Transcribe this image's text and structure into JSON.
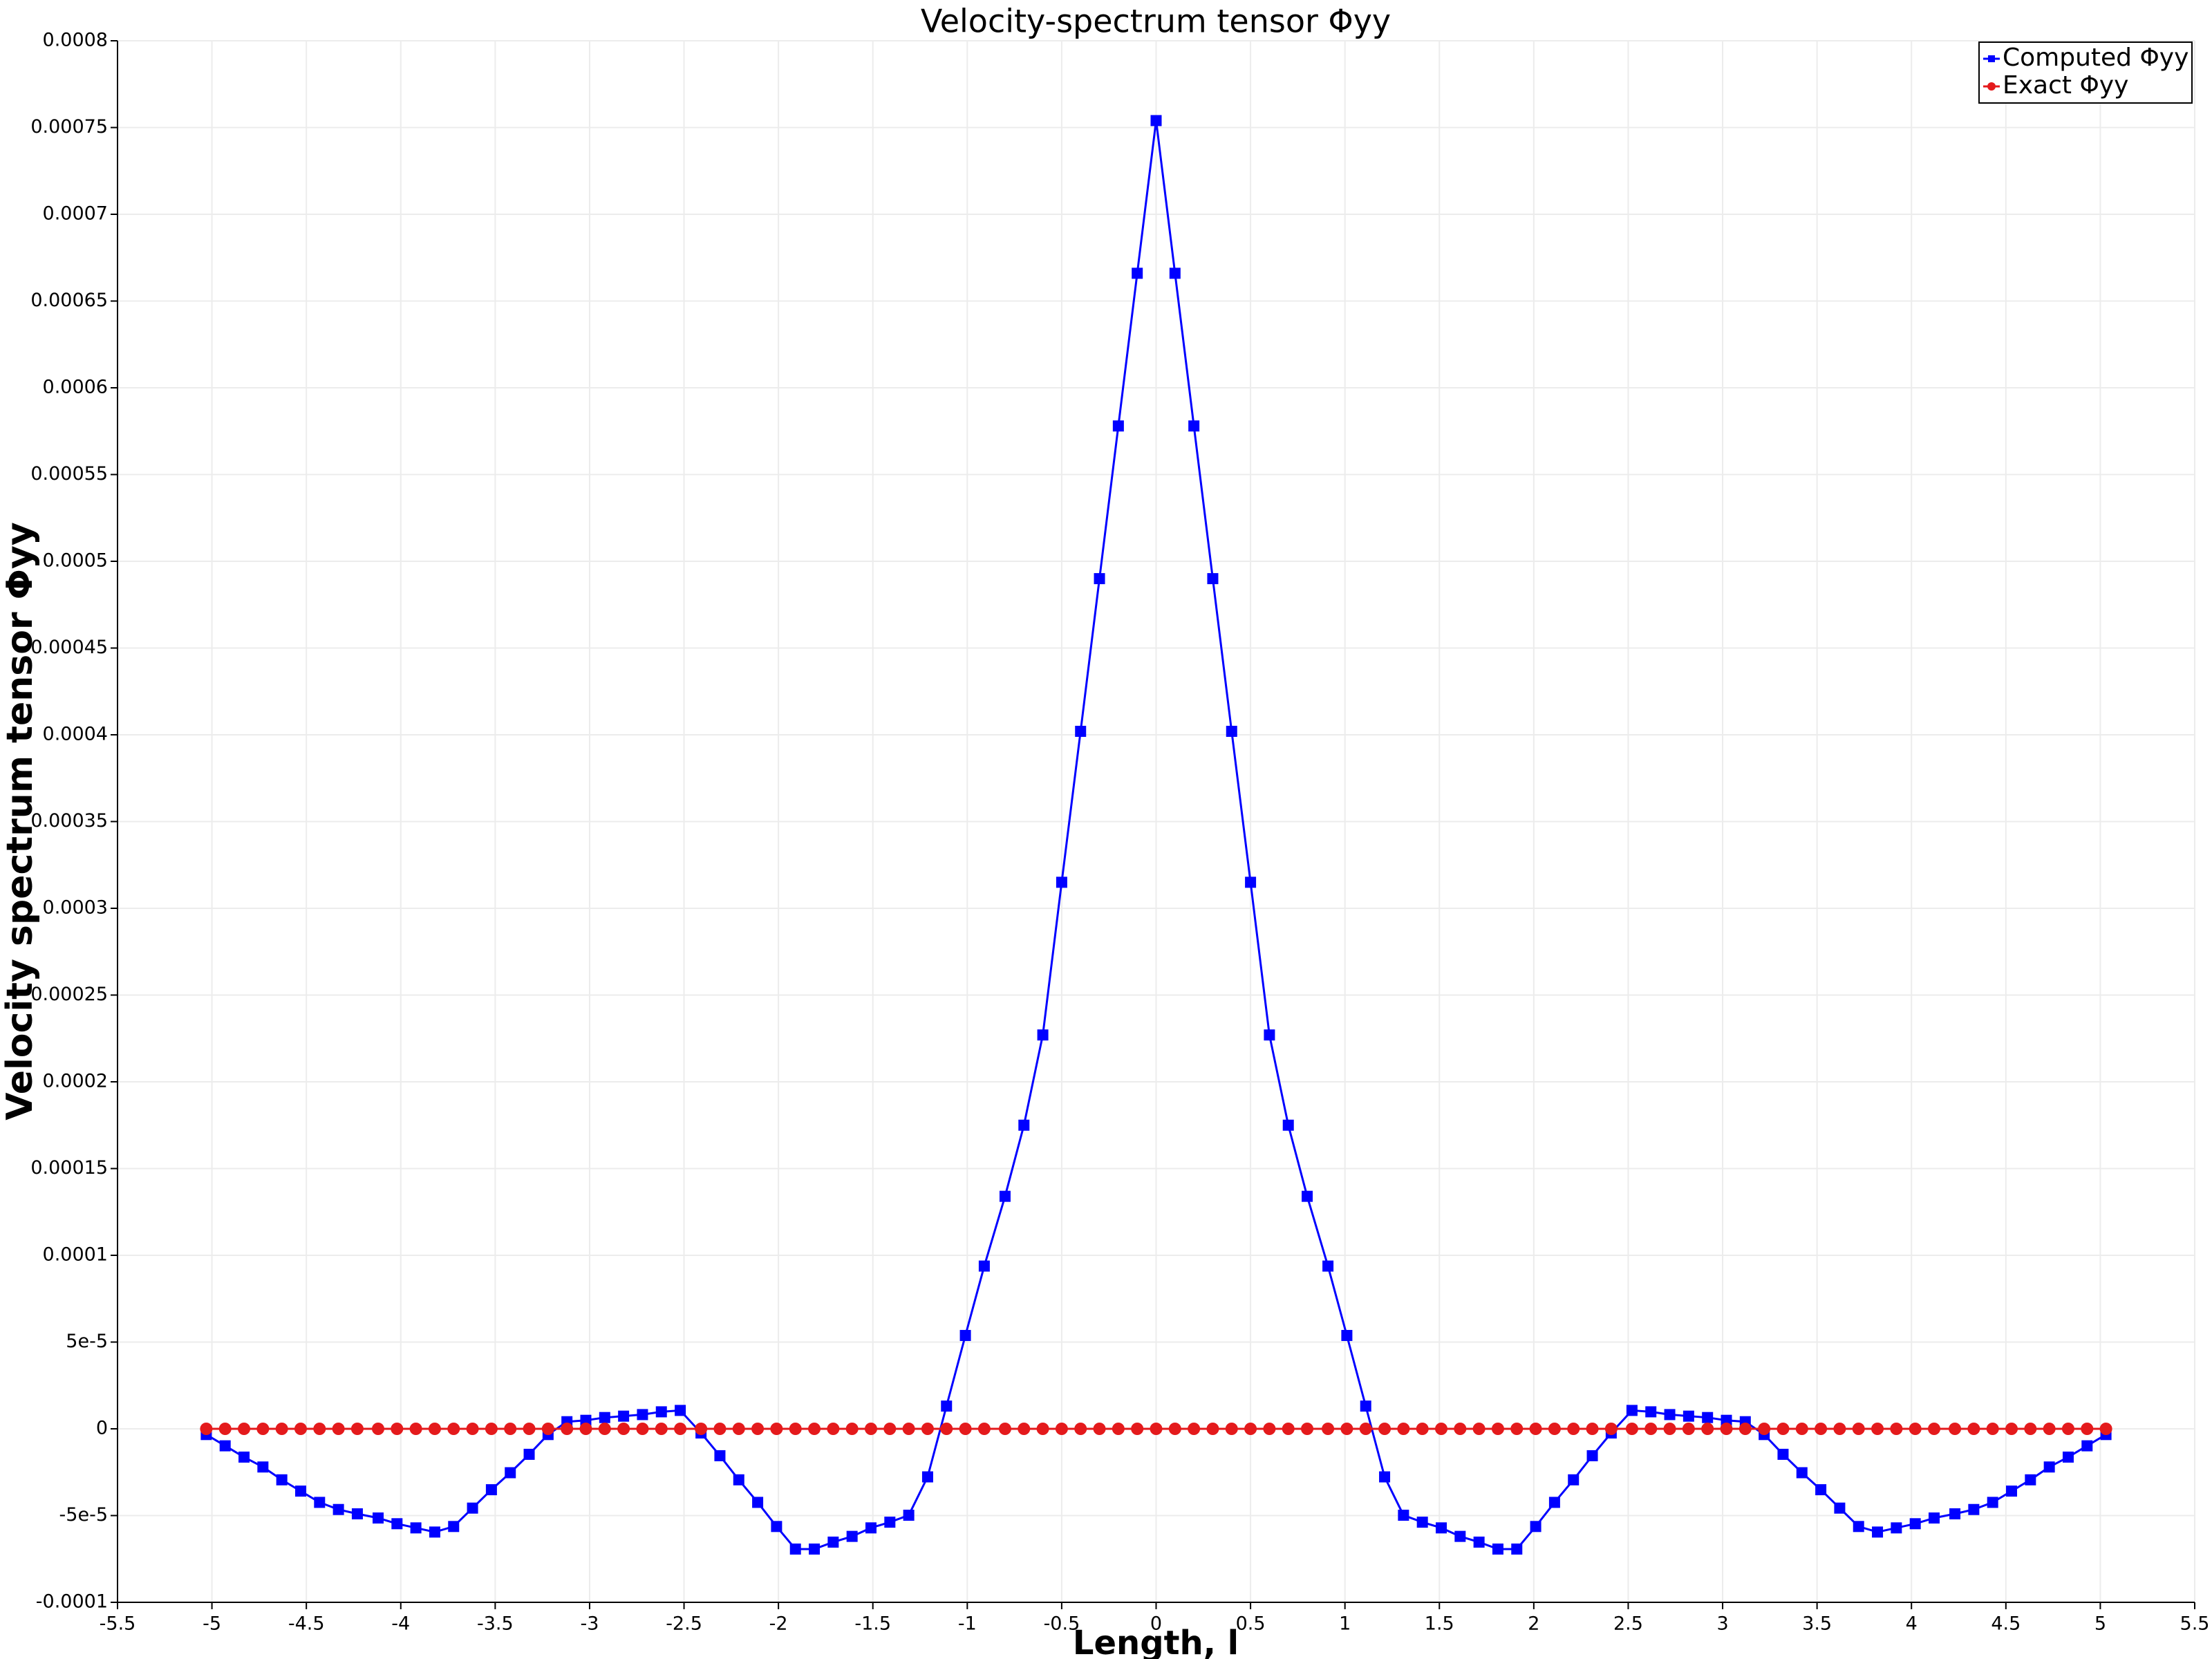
{
  "chart_data": {
    "type": "line",
    "title": "Velocity-spectrum tensor Φyy",
    "x_label": "Length, l",
    "y_label": "Velocity spectrum tensor Φyy",
    "x": [
      -5.03,
      -4.93,
      -4.83,
      -4.73,
      -4.63,
      -4.53,
      -4.43,
      -4.33,
      -4.23,
      -4.12,
      -4.02,
      -3.92,
      -3.82,
      -3.72,
      -3.62,
      -3.52,
      -3.42,
      -3.32,
      -3.22,
      -3.12,
      -3.02,
      -2.92,
      -2.82,
      -2.72,
      -2.62,
      -2.52,
      -2.41,
      -2.31,
      -2.21,
      -2.11,
      -2.01,
      -1.91,
      -1.81,
      -1.71,
      -1.61,
      -1.51,
      -1.41,
      -1.31,
      -1.21,
      -1.11,
      -1.01,
      -0.91,
      -0.8,
      -0.7,
      -0.6,
      -0.5,
      -0.4,
      -0.3,
      -0.2,
      -0.1,
      0,
      0.1,
      0.2,
      0.3,
      0.4,
      0.5,
      0.6,
      0.7,
      0.8,
      0.91,
      1.01,
      1.11,
      1.21,
      1.31,
      1.41,
      1.51,
      1.61,
      1.71,
      1.81,
      1.91,
      2.01,
      2.11,
      2.21,
      2.31,
      2.41,
      2.52,
      2.62,
      2.72,
      2.82,
      2.92,
      3.02,
      3.12,
      3.22,
      3.32,
      3.42,
      3.52,
      3.62,
      3.72,
      3.82,
      3.92,
      4.02,
      4.12,
      4.23,
      4.33,
      4.43,
      4.53,
      4.63,
      4.73,
      4.83,
      4.93,
      5.03
    ],
    "series": [
      {
        "name": "Computed Φyy",
        "color": "#0000ff",
        "marker": "square",
        "values": [
          -3.3e-06,
          -9.8e-06,
          -1.63e-05,
          -2.2e-05,
          -2.94e-05,
          -3.59e-05,
          -4.24e-05,
          -4.65e-05,
          -4.9e-05,
          -5.14e-05,
          -5.47e-05,
          -5.71e-05,
          -5.95e-05,
          -5.63e-05,
          -4.57e-05,
          -3.51e-05,
          -2.53e-05,
          -1.47e-05,
          -3.3e-06,
          4.1e-06,
          4.9e-06,
          6.5e-06,
          7.3e-06,
          8.2e-06,
          9.8e-06,
          1.06e-05,
          -2.4e-06,
          -1.55e-05,
          -2.94e-05,
          -4.24e-05,
          -5.63e-05,
          -6.93e-05,
          -6.93e-05,
          -6.53e-05,
          -6.2e-05,
          -5.71e-05,
          -5.38e-05,
          -4.98e-05,
          -2.77e-05,
          1.31e-05,
          5.38e-05,
          9.38e-05,
          0.000134,
          0.000175,
          0.000227,
          0.000315,
          0.000402,
          0.00049,
          0.000578,
          0.000666,
          0.000754,
          0.000666,
          0.000578,
          0.00049,
          0.000402,
          0.000315,
          0.000227,
          0.000175,
          0.000134,
          9.38e-05,
          5.38e-05,
          1.31e-05,
          -2.77e-05,
          -4.98e-05,
          -5.38e-05,
          -5.71e-05,
          -6.2e-05,
          -6.53e-05,
          -6.93e-05,
          -6.93e-05,
          -5.63e-05,
          -4.24e-05,
          -2.94e-05,
          -1.55e-05,
          -2.4e-06,
          1.06e-05,
          9.8e-06,
          8.2e-06,
          7.3e-06,
          6.5e-06,
          4.9e-06,
          4.1e-06,
          -3.3e-06,
          -1.47e-05,
          -2.53e-05,
          -3.51e-05,
          -4.57e-05,
          -5.63e-05,
          -5.95e-05,
          -5.71e-05,
          -5.47e-05,
          -5.14e-05,
          -4.9e-05,
          -4.65e-05,
          -4.24e-05,
          -3.59e-05,
          -2.94e-05,
          -2.2e-05,
          -1.63e-05,
          -9.8e-06,
          -3.3e-06
        ]
      },
      {
        "name": "Exact Φyy",
        "color": "#e41a1c",
        "marker": "circle",
        "values": [
          0,
          0,
          0,
          0,
          0,
          0,
          0,
          0,
          0,
          0,
          0,
          0,
          0,
          0,
          0,
          0,
          0,
          0,
          0,
          0,
          0,
          0,
          0,
          0,
          0,
          0,
          0,
          0,
          0,
          0,
          0,
          0,
          0,
          0,
          0,
          0,
          0,
          0,
          0,
          0,
          0,
          0,
          0,
          0,
          0,
          0,
          0,
          0,
          0,
          0,
          0,
          0,
          0,
          0,
          0,
          0,
          0,
          0,
          0,
          0,
          0,
          0,
          0,
          0,
          0,
          0,
          0,
          0,
          0,
          0,
          0,
          0,
          0,
          0,
          0,
          0,
          0,
          0,
          0,
          0,
          0,
          0,
          0,
          0,
          0,
          0,
          0,
          0,
          0,
          0,
          0,
          0,
          0,
          0,
          0,
          0,
          0,
          0,
          0,
          0,
          0
        ]
      }
    ],
    "xlim": [
      -5.5,
      5.5
    ],
    "xticks": [
      -5.5,
      -5,
      -4.5,
      -4,
      -3.5,
      -3,
      -2.5,
      -2,
      -1.5,
      -1,
      -0.5,
      0,
      0.5,
      1,
      1.5,
      2,
      2.5,
      3,
      3.5,
      4,
      4.5,
      5,
      5.5
    ],
    "ylim": [
      -0.0001,
      0.0008
    ],
    "yticks": [
      -0.0001,
      {
        "value": -5e-05,
        "label": "-5e-5"
      },
      0,
      {
        "value": 5e-05,
        "label": "5e-5"
      },
      0.0001,
      0.00015,
      0.0002,
      0.00025,
      0.0003,
      0.00035,
      0.0004,
      0.00045,
      0.0005,
      0.00055,
      0.0006,
      0.00065,
      0.0007,
      0.00075,
      0.0008
    ],
    "grid": true,
    "legend": "upper-right"
  }
}
